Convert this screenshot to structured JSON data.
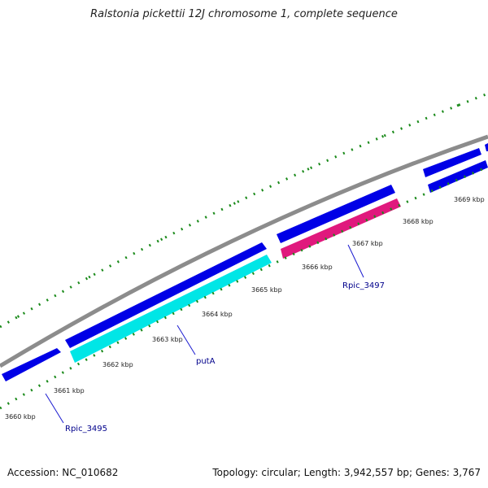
{
  "title": "Ralstonia pickettii 12J chromosome 1, complete sequence",
  "footer": {
    "accession": "Accession: NC_010682",
    "summary": "Topology: circular; Length: 3,942,557 bp; Genes: 3,767"
  },
  "colors": {
    "backbone": "#8c8c8c",
    "cds_forward": "#0000e6",
    "cds_reverse": "#0000e6",
    "cds_cyan": "#00e6e6",
    "cds_magenta": "#e0197d",
    "tick": "#1a8a1a",
    "gene_label": "#00008b",
    "leader_line": "#1a1ad0"
  },
  "kbp_labels": [
    "3660 kbp",
    "3661 kbp",
    "3662 kbp",
    "3663 kbp",
    "3664 kbp",
    "3665 kbp",
    "3666 kbp",
    "3667 kbp",
    "3668 kbp",
    "3669 kbp"
  ],
  "gene_labels": [
    "Rpic_3495",
    "putA",
    "Rpic_3497"
  ]
}
